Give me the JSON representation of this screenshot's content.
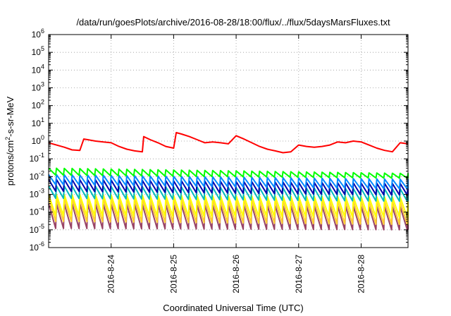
{
  "chart_data": {
    "type": "line",
    "title": "/data/run/goesPlots/archive/2016-08-28/18:00/flux/../flux/5daysMarsFluxes.txt",
    "xlabel": "Coordinated Universal Time (UTC)",
    "ylabel": "protons/cm²-s-sr-MeV",
    "ylabel_base": "protons/cm",
    "ylabel_sup": "2",
    "ylabel_rest": "-s-sr-MeV",
    "yscale": "log",
    "ylim": [
      1e-06,
      1000000.0
    ],
    "xlim": [
      "2016-08-23 00:00",
      "2016-08-28 18:00"
    ],
    "x_ticks": [
      "2016-8-24",
      "2016-8-25",
      "2016-8-26",
      "2016-8-27",
      "2016-8-28"
    ],
    "y_ticks": [
      {
        "base": "10",
        "exp": "-6"
      },
      {
        "base": "10",
        "exp": "-5"
      },
      {
        "base": "10",
        "exp": "-4"
      },
      {
        "base": "10",
        "exp": "-3"
      },
      {
        "base": "10",
        "exp": "-2"
      },
      {
        "base": "10",
        "exp": "-1"
      },
      {
        "base": "10",
        "exp": "0"
      },
      {
        "base": "10",
        "exp": "1"
      },
      {
        "base": "10",
        "exp": "2"
      },
      {
        "base": "10",
        "exp": "3"
      },
      {
        "base": "10",
        "exp": "4"
      },
      {
        "base": "10",
        "exp": "5"
      },
      {
        "base": "10",
        "exp": "6"
      }
    ],
    "grid": true,
    "legend": "none",
    "series": [
      {
        "color": "#ff0000",
        "x": [
          "2016-08-23 00:00",
          "2016-08-23 03:00",
          "2016-08-23 06:00",
          "2016-08-23 09:00",
          "2016-08-23 12:00",
          "2016-08-23 13:30",
          "2016-08-23 15:00",
          "2016-08-23 18:00",
          "2016-08-23 21:00",
          "2016-08-24 00:00",
          "2016-08-24 03:00",
          "2016-08-24 06:00",
          "2016-08-24 09:00",
          "2016-08-24 12:00",
          "2016-08-24 12:30",
          "2016-08-24 15:00",
          "2016-08-24 18:00",
          "2016-08-24 21:00",
          "2016-08-25 00:00",
          "2016-08-25 01:00",
          "2016-08-25 03:00",
          "2016-08-25 06:00",
          "2016-08-25 09:00",
          "2016-08-25 12:00",
          "2016-08-25 15:00",
          "2016-08-25 18:00",
          "2016-08-25 21:00",
          "2016-08-26 00:00",
          "2016-08-26 03:00",
          "2016-08-26 06:00",
          "2016-08-26 09:00",
          "2016-08-26 12:00",
          "2016-08-26 15:00",
          "2016-08-26 18:00",
          "2016-08-26 21:00",
          "2016-08-27 00:00",
          "2016-08-27 03:00",
          "2016-08-27 06:00",
          "2016-08-27 09:00",
          "2016-08-27 12:00",
          "2016-08-27 15:00",
          "2016-08-27 18:00",
          "2016-08-27 21:00",
          "2016-08-28 00:00",
          "2016-08-28 03:00",
          "2016-08-28 06:00",
          "2016-08-28 09:00",
          "2016-08-28 12:00",
          "2016-08-28 15:00",
          "2016-08-28 18:00"
        ],
        "y": [
          0.8,
          0.6,
          0.45,
          0.32,
          0.3,
          1.3,
          1.2,
          1.0,
          0.9,
          0.8,
          0.5,
          0.35,
          0.28,
          0.25,
          1.8,
          1.2,
          0.8,
          0.5,
          0.4,
          3.0,
          2.5,
          1.8,
          1.2,
          0.8,
          0.9,
          0.8,
          0.7,
          2.0,
          1.3,
          0.8,
          0.5,
          0.35,
          0.28,
          0.22,
          0.25,
          0.6,
          0.5,
          0.45,
          0.5,
          0.6,
          0.9,
          0.8,
          1.0,
          0.9,
          0.6,
          0.4,
          0.3,
          0.25,
          0.8,
          0.7
        ]
      },
      {
        "color": "#00ff00",
        "x": [
          "2016-08-23 00:00",
          "2016-08-28 18:00"
        ],
        "y": [
          0.03,
          0.015
        ]
      },
      {
        "color": "#0088ff",
        "x": [
          "2016-08-23 00:00",
          "2016-08-28 18:00"
        ],
        "y": [
          0.012,
          0.006
        ]
      },
      {
        "color": "#0000aa",
        "x": [
          "2016-08-23 00:00",
          "2016-08-28 18:00"
        ],
        "y": [
          0.006,
          0.0035
        ]
      },
      {
        "color": "#00bbbb",
        "x": [
          "2016-08-23 00:00",
          "2016-08-28 18:00"
        ],
        "y": [
          0.003,
          0.0018
        ]
      },
      {
        "color": "#ffff00",
        "x": [
          "2016-08-23 00:00",
          "2016-08-28 18:00"
        ],
        "y": [
          0.0008,
          0.0005
        ]
      },
      {
        "color": "#ffcc33",
        "x": [
          "2016-08-23 00:00",
          "2016-08-28 18:00"
        ],
        "y": [
          0.0005,
          0.0003
        ]
      },
      {
        "color": "#994466",
        "x": [
          "2016-08-23 00:00",
          "2016-08-28 18:00"
        ],
        "y": [
          0.0002,
          0.00012
        ]
      }
    ],
    "series_sawtooth": [
      {
        "peak_start": 0.03,
        "peak_end": 0.015,
        "trough_start": 0.012,
        "trough_end": 0.008
      },
      {
        "peak_start": 0.013,
        "peak_end": 0.007,
        "trough_start": 0.0035,
        "trough_end": 0.002
      },
      {
        "peak_start": 0.007,
        "peak_end": 0.004,
        "trough_start": 0.0015,
        "trough_end": 0.0009
      },
      {
        "peak_start": 0.003,
        "peak_end": 0.002,
        "trough_start": 0.0006,
        "trough_end": 0.0004
      },
      {
        "peak_start": 0.001,
        "peak_end": 0.0007,
        "trough_start": 6e-05,
        "trough_end": 5e-05
      },
      {
        "peak_start": 0.0006,
        "peak_end": 0.0004,
        "trough_start": 3e-05,
        "trough_end": 2e-05
      },
      {
        "peak_start": 0.0003,
        "peak_end": 0.0002,
        "trough_start": 1.2e-05,
        "trough_end": 1e-05
      }
    ],
    "sawtooth_period_hours": 3
  }
}
